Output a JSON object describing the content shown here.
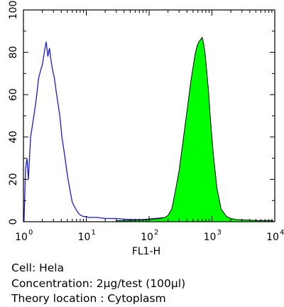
{
  "chart_data": {
    "type": "area",
    "x_scale": "log",
    "xlim": [
      1,
      10000
    ],
    "ylim": [
      0,
      100
    ],
    "xlabel": "FL1-H",
    "ylabel": "",
    "x_tick_labels": [
      {
        "value": 1,
        "base": "10",
        "exp": "0"
      },
      {
        "value": 10,
        "base": "10",
        "exp": "1"
      },
      {
        "value": 100,
        "base": "10",
        "exp": "2"
      },
      {
        "value": 1000,
        "base": "10",
        "exp": "3"
      },
      {
        "value": 10000,
        "base": "10",
        "exp": "4"
      }
    ],
    "y_ticks": [
      "0",
      "20",
      "40",
      "60",
      "80",
      "100"
    ],
    "grid": false,
    "series": [
      {
        "style": "outline",
        "color": "#1a1ad6",
        "x": [
          1.02,
          1.08,
          1.14,
          1.2,
          1.3,
          1.4,
          1.5,
          1.6,
          1.75,
          1.9,
          2.0,
          2.15,
          2.3,
          2.45,
          2.6,
          2.75,
          2.9,
          3.1,
          3.3,
          3.5,
          3.8,
          4.1,
          4.5,
          5.0,
          5.5,
          6.0,
          6.8,
          7.5,
          8.2,
          9.0,
          10.0,
          11.0,
          12.0,
          15.0,
          20.0,
          30.0,
          50.0,
          80.0,
          120.0,
          200.0,
          400.0,
          1000.0,
          3000.0,
          9000.0
        ],
        "values": [
          0,
          25,
          30,
          20,
          40,
          46,
          52,
          58,
          68,
          72,
          74,
          80,
          85,
          78,
          82,
          76,
          72,
          68,
          62,
          57,
          50,
          40,
          32,
          22,
          15,
          9,
          6,
          4,
          3,
          2.5,
          2.5,
          2,
          2,
          2,
          1.5,
          1.5,
          1,
          1,
          1.5,
          2,
          1,
          0.5,
          0.5,
          0.5
        ]
      },
      {
        "style": "filled",
        "color": "#00ff00",
        "x": [
          30,
          80,
          150,
          180,
          200,
          230,
          260,
          300,
          340,
          380,
          420,
          460,
          500,
          540,
          580,
          620,
          660,
          700,
          740,
          780,
          820,
          880,
          950,
          1050,
          1200,
          1400,
          1700,
          2000,
          2500,
          3500,
          6000,
          9500
        ],
        "values": [
          0.5,
          0.8,
          1.5,
          2,
          3,
          6,
          14,
          24,
          36,
          47,
          57,
          66,
          73,
          79,
          83,
          85,
          86,
          87,
          84,
          79,
          72,
          62,
          48,
          32,
          16,
          6,
          2.5,
          1.5,
          1,
          0.8,
          0.5,
          0.5
        ]
      }
    ]
  },
  "caption": {
    "line1": "Cell: Hela",
    "line2": "Concentration: 2μg/test (100μl)",
    "line3": "Theory location : Cytoplasm"
  }
}
